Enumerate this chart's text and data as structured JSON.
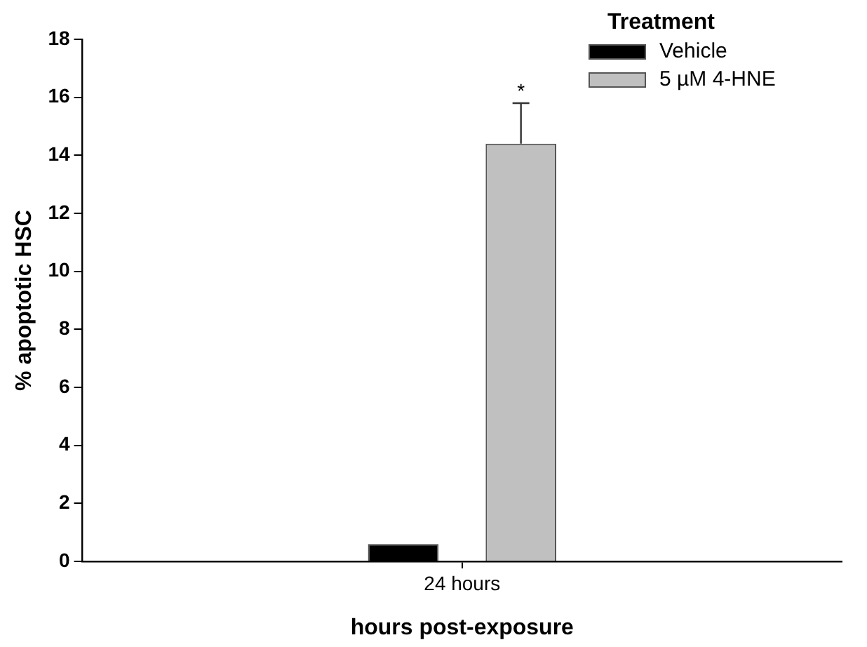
{
  "chart_data": {
    "type": "bar",
    "xlabel": "hours post-exposure",
    "ylabel": "% apoptotic HSC",
    "legend_title": "Treatment",
    "categories": [
      "24 hours"
    ],
    "series": [
      {
        "name": "Vehicle",
        "color": "#000000",
        "values": [
          0.6
        ]
      },
      {
        "name": "5 µM 4-HNE",
        "color": "#c0c0c0",
        "values": [
          14.4
        ],
        "errors": [
          [
            14.4,
            15.8
          ]
        ]
      }
    ],
    "ylim": [
      0,
      18
    ],
    "yticks": [
      0,
      2,
      4,
      6,
      8,
      10,
      12,
      14,
      16,
      18
    ],
    "legend": "top right",
    "annotations": [
      "*"
    ]
  }
}
